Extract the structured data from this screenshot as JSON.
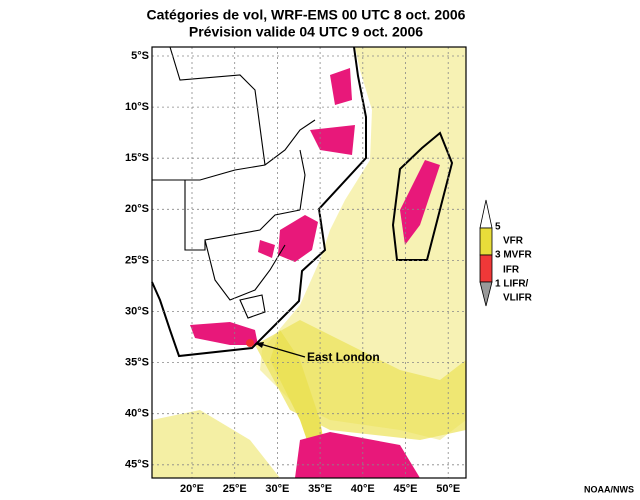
{
  "title": {
    "line1": "Catégories de vol, WRF-EMS 00 UTC 8 oct. 2006",
    "line2": "Prévision valide 04 UTC 9 oct. 2006"
  },
  "map": {
    "lat_labels": [
      "5°S",
      "10°S",
      "15°S",
      "20°S",
      "25°S",
      "30°S",
      "35°S",
      "40°S",
      "45°S"
    ],
    "lon_labels": [
      "20°E",
      "25°E",
      "30°E",
      "35°E",
      "40°E",
      "45°E",
      "50°E"
    ],
    "annotation": "East London"
  },
  "legend": {
    "labels": [
      "5",
      "VFR",
      "3 MVFR",
      "IFR",
      "1 LIFR/",
      "VLIFR"
    ]
  },
  "credit": "NOAA/NWS"
}
